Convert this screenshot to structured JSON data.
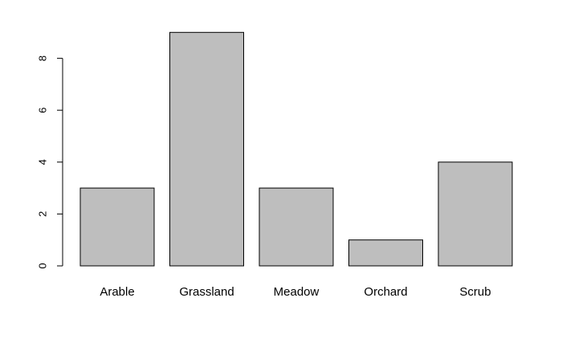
{
  "chart_data": {
    "type": "bar",
    "title": "",
    "xlabel": "",
    "ylabel": "",
    "categories": [
      "Arable",
      "Grassland",
      "Meadow",
      "Orchard",
      "Scrub"
    ],
    "values": [
      3,
      9,
      3,
      1,
      4
    ],
    "ylim": [
      0,
      9
    ],
    "yticks": [
      0,
      2,
      4,
      6,
      8
    ],
    "grid": false,
    "legend": "none",
    "colors": {
      "bar_fill": "#bebebe",
      "bar_stroke": "#000000",
      "axis": "#000000",
      "background": "#ffffff"
    }
  }
}
